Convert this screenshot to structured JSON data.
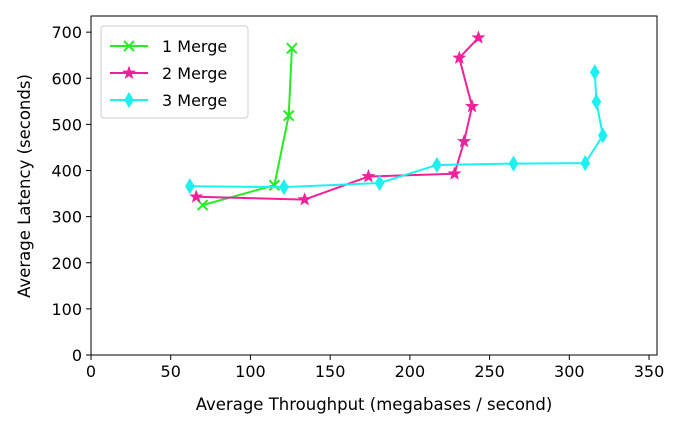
{
  "chart_data": {
    "type": "line",
    "xlabel": "Average Throughput (megabases / second)",
    "ylabel": "Average Latency (seconds)",
    "xlim": [
      0,
      355
    ],
    "ylim": [
      0,
      735
    ],
    "xticks": [
      0,
      50,
      100,
      150,
      200,
      250,
      300,
      350
    ],
    "yticks": [
      0,
      100,
      200,
      300,
      400,
      500,
      600,
      700
    ],
    "grid": false,
    "legend_position": "top-left",
    "series": [
      {
        "name": "1 Merge",
        "color": "#22ee22",
        "marker": "x",
        "x": [
          70,
          115,
          124,
          126
        ],
        "y": [
          325,
          368,
          519,
          665
        ]
      },
      {
        "name": "2 Merge",
        "color": "#f0219b",
        "marker": "star",
        "x": [
          66,
          134,
          174,
          228,
          234,
          239,
          231,
          243
        ],
        "y": [
          343,
          337,
          387,
          393,
          463,
          539,
          644,
          688
        ]
      },
      {
        "name": "3 Merge",
        "color": "#1ef0f0",
        "marker": "thin-diamond",
        "x": [
          62,
          121,
          181,
          217,
          265,
          310,
          321,
          317,
          316
        ],
        "y": [
          366,
          364,
          373,
          412,
          415,
          416,
          476,
          549,
          613
        ]
      }
    ]
  }
}
